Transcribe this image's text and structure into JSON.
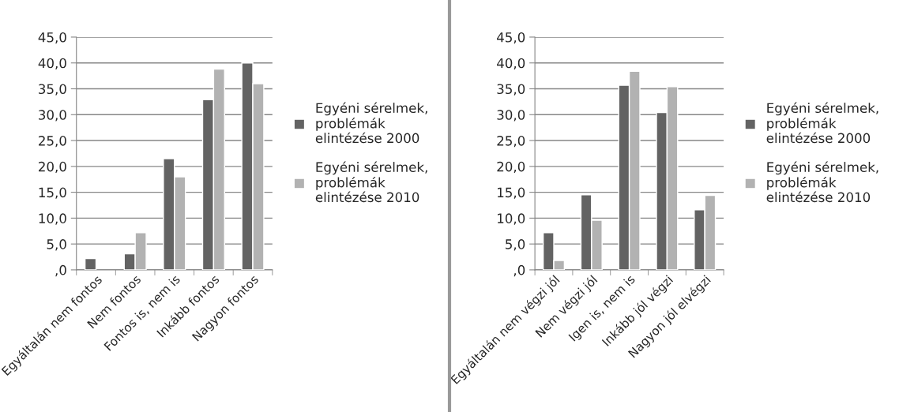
{
  "chart_data": [
    {
      "type": "bar",
      "categories": [
        "Egyáltalán nem fontos",
        "Nem fontos",
        "Fontos is, nem is",
        "Inkább fontos",
        "Nagyon fontos"
      ],
      "series": [
        {
          "name": "Egyéni sérelmek, problémák elintézése 2000",
          "color": "#636363",
          "values": [
            2.2,
            3.1,
            21.5,
            32.9,
            40.0
          ]
        },
        {
          "name": "Egyéni sérelmek, problémák elintézése 2010",
          "color": "#b2b2b2",
          "values": [
            null,
            7.2,
            18.0,
            38.8,
            36.0
          ]
        }
      ],
      "ylim": [
        0,
        45
      ],
      "yticks": [
        {
          "value": 0,
          "label": ",0"
        },
        {
          "value": 5,
          "label": "5,0"
        },
        {
          "value": 10,
          "label": "10,0"
        },
        {
          "value": 15,
          "label": "15,0"
        },
        {
          "value": 20,
          "label": "20,0"
        },
        {
          "value": 25,
          "label": "25,0"
        },
        {
          "value": 30,
          "label": "30,0"
        },
        {
          "value": 35,
          "label": "35,0"
        },
        {
          "value": 40,
          "label": "40,0"
        },
        {
          "value": 45,
          "label": "45,0"
        }
      ],
      "grid": "y",
      "legend": "right"
    },
    {
      "type": "bar",
      "categories": [
        "Egyáltalán nem végzi jól",
        "Nem végzi jól",
        "Igen is, nem is",
        "Inkább jól végzi",
        "Nagyon jól elvégzi"
      ],
      "series": [
        {
          "name": "Egyéni sérelmek, problémák elintézése 2000",
          "color": "#636363",
          "values": [
            7.2,
            14.5,
            35.7,
            30.4,
            11.6
          ]
        },
        {
          "name": "Egyéni sérelmek, problémák elintézése 2010",
          "color": "#b2b2b2",
          "values": [
            1.8,
            9.6,
            38.4,
            35.4,
            14.4
          ]
        }
      ],
      "ylim": [
        0,
        45
      ],
      "yticks": [
        {
          "value": 0,
          "label": ",0"
        },
        {
          "value": 5,
          "label": "5,0"
        },
        {
          "value": 10,
          "label": "10,0"
        },
        {
          "value": 15,
          "label": "15,0"
        },
        {
          "value": 20,
          "label": "20,0"
        },
        {
          "value": 25,
          "label": "25,0"
        },
        {
          "value": 30,
          "label": "30,0"
        },
        {
          "value": 35,
          "label": "35,0"
        },
        {
          "value": 40,
          "label": "40,0"
        },
        {
          "value": 45,
          "label": "45,0"
        }
      ],
      "grid": "y",
      "legend": "right"
    }
  ]
}
